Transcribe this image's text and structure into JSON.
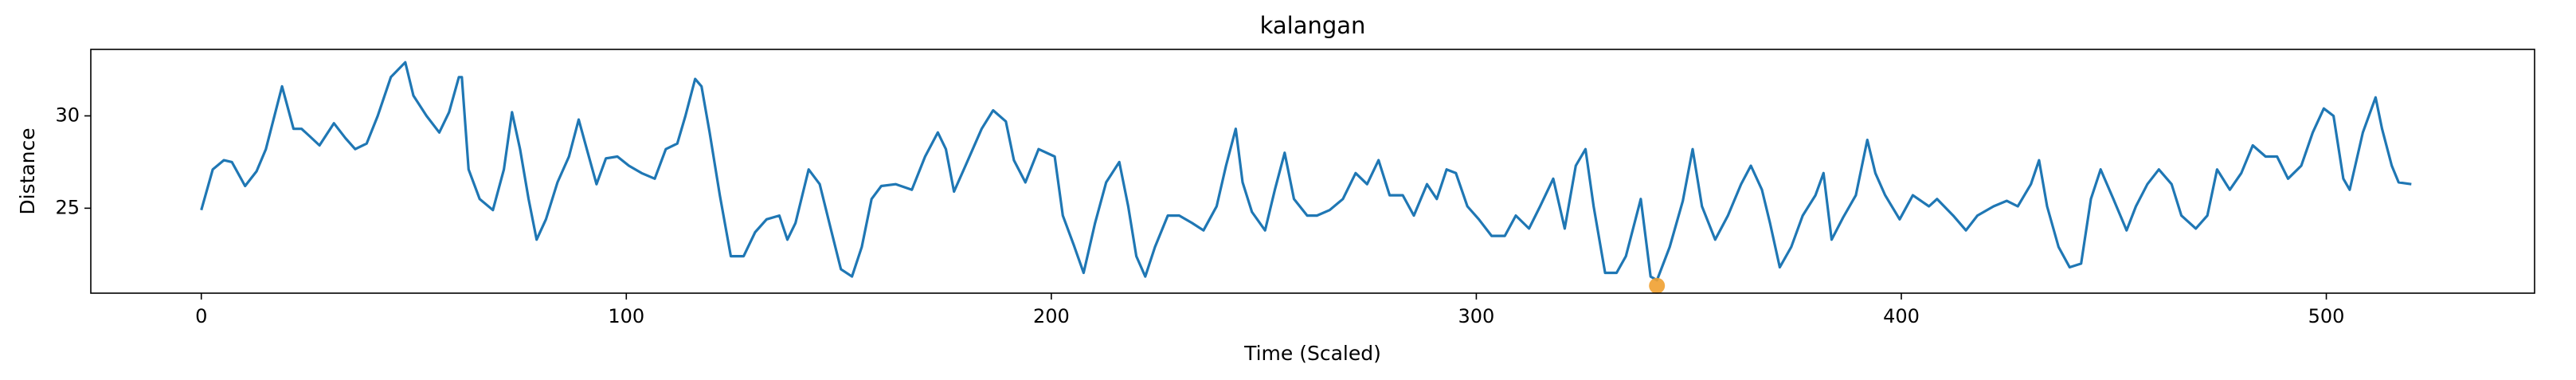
{
  "chart_data": {
    "type": "line",
    "title": "kalangan",
    "x_label": "Time (Scaled)",
    "y_label": "Distance",
    "color": "#1f77b4",
    "x": [
      0,
      2.7,
      5.3,
      7.2,
      10.3,
      13,
      15.2,
      19,
      21.7,
      23.6,
      25.5,
      27.8,
      31.2,
      33.9,
      36.2,
      38.9,
      41.5,
      44.6,
      48,
      49.9,
      53,
      56,
      58.3,
      60.6,
      61.3,
      62.9,
      65.5,
      68.6,
      71.2,
      73.1,
      75,
      77,
      78.9,
      81.1,
      83.8,
      86.5,
      88.8,
      90.7,
      93,
      95.2,
      97.9,
      100.6,
      103.6,
      106.7,
      109.3,
      112,
      113.9,
      116.2,
      117.7,
      119.6,
      122,
      124.6,
      127.6,
      130.3,
      133,
      136,
      137.9,
      139.8,
      142.9,
      145.5,
      148.2,
      150.5,
      153.1,
      155.4,
      157.7,
      160,
      163.4,
      167.2,
      170.3,
      173.3,
      175.2,
      177.1,
      179.8,
      183.6,
      186.3,
      189.3,
      191.2,
      193.9,
      197,
      200.8,
      202.7,
      205.3,
      207.6,
      210.3,
      212.9,
      216,
      218.1,
      220,
      222.1,
      224.4,
      227.4,
      230.1,
      233.1,
      235.8,
      238.9,
      241.1,
      243.4,
      245,
      247.2,
      250.3,
      252.6,
      254.9,
      257.1,
      260.2,
      262.5,
      265.5,
      268.6,
      271.6,
      274.3,
      277,
      279.6,
      282.7,
      285.3,
      288.4,
      290.7,
      293,
      295.2,
      297.9,
      300.6,
      303.6,
      306.7,
      309.3,
      312.4,
      315,
      318.1,
      320.8,
      323.4,
      325.7,
      327.6,
      330.3,
      333,
      335.2,
      338.7,
      341,
      342.5,
      345.5,
      348.6,
      350.9,
      353.1,
      356.2,
      359.2,
      362.3,
      364.6,
      367.2,
      369.1,
      371.4,
      374.1,
      376.8,
      379.8,
      381.7,
      383.6,
      386.3,
      389.3,
      392,
      393.9,
      396.2,
      399.6,
      402.7,
      406.5,
      408.4,
      412.2,
      415.2,
      417.9,
      421.7,
      424.8,
      427.4,
      430.5,
      432.4,
      434.3,
      437,
      439.6,
      442.3,
      444.6,
      446.9,
      449.9,
      453,
      455.2,
      457.9,
      460.6,
      463.6,
      465.9,
      469.3,
      472,
      474.3,
      477.3,
      480,
      482.7,
      485.7,
      488.4,
      491,
      494.1,
      496.8,
      499.4,
      501.7,
      504,
      505.5,
      508.6,
      511.6,
      513.1,
      515.4,
      517,
      520
    ],
    "values": [
      24.9,
      27.1,
      27.6,
      27.5,
      26.2,
      27,
      28.2,
      31.6,
      29.3,
      29.3,
      28.9,
      28.4,
      29.6,
      28.8,
      28.2,
      28.5,
      30,
      32.1,
      32.9,
      31.1,
      30,
      29.1,
      30.2,
      32.1,
      32.1,
      27.1,
      25.5,
      24.9,
      27.1,
      30.2,
      28.2,
      25.5,
      23.3,
      24.4,
      26.4,
      27.8,
      29.8,
      28.2,
      26.3,
      27.7,
      27.8,
      27.3,
      26.9,
      26.6,
      28.2,
      28.5,
      30,
      32,
      31.6,
      29.1,
      25.7,
      22.4,
      22.4,
      23.7,
      24.4,
      24.6,
      23.3,
      24.2,
      27.1,
      26.3,
      23.8,
      21.7,
      21.3,
      22.9,
      25.5,
      26.2,
      26.3,
      26,
      27.8,
      29.1,
      28.2,
      25.9,
      27.3,
      29.3,
      30.3,
      29.7,
      27.6,
      26.4,
      28.2,
      27.8,
      24.6,
      23,
      21.5,
      24.2,
      26.4,
      27.5,
      25.1,
      22.4,
      21.3,
      22.9,
      24.6,
      24.6,
      24.2,
      23.8,
      25.1,
      27.3,
      29.3,
      26.4,
      24.8,
      23.8,
      26,
      28,
      25.5,
      24.6,
      24.6,
      24.9,
      25.5,
      26.9,
      26.3,
      27.6,
      25.7,
      25.7,
      24.6,
      26.3,
      25.5,
      27.1,
      26.9,
      25.1,
      24.4,
      23.5,
      23.5,
      24.6,
      23.9,
      25.1,
      26.6,
      23.9,
      27.3,
      28.2,
      25.1,
      21.5,
      21.5,
      22.4,
      25.5,
      21.3,
      21.1,
      22.9,
      25.4,
      28.2,
      25.1,
      23.3,
      24.6,
      26.3,
      27.3,
      26,
      24.2,
      21.8,
      22.9,
      24.6,
      25.7,
      26.9,
      23.3,
      24.5,
      25.7,
      28.7,
      26.9,
      25.7,
      24.4,
      25.7,
      25.1,
      25.5,
      24.6,
      23.8,
      24.6,
      25.1,
      25.4,
      25.1,
      26.3,
      27.6,
      25.1,
      22.9,
      21.8,
      22,
      25.5,
      27.1,
      25.5,
      23.8,
      25.1,
      26.3,
      27.1,
      26.3,
      24.6,
      23.9,
      24.6,
      27.1,
      26,
      26.9,
      28.4,
      27.8,
      27.8,
      26.6,
      27.3,
      29.1,
      30.4,
      30,
      26.6,
      26,
      29.1,
      31,
      29.3,
      27.3,
      26.4,
      26.3
    ],
    "highlight": {
      "x": 342.5,
      "y": 20.8,
      "color": "#f0a030"
    },
    "xlim": [
      -26,
      549
    ],
    "ylim": [
      20.4,
      33.6
    ],
    "xticks": [
      0,
      100,
      200,
      300,
      400,
      500
    ],
    "yticks": [
      25,
      30
    ]
  }
}
